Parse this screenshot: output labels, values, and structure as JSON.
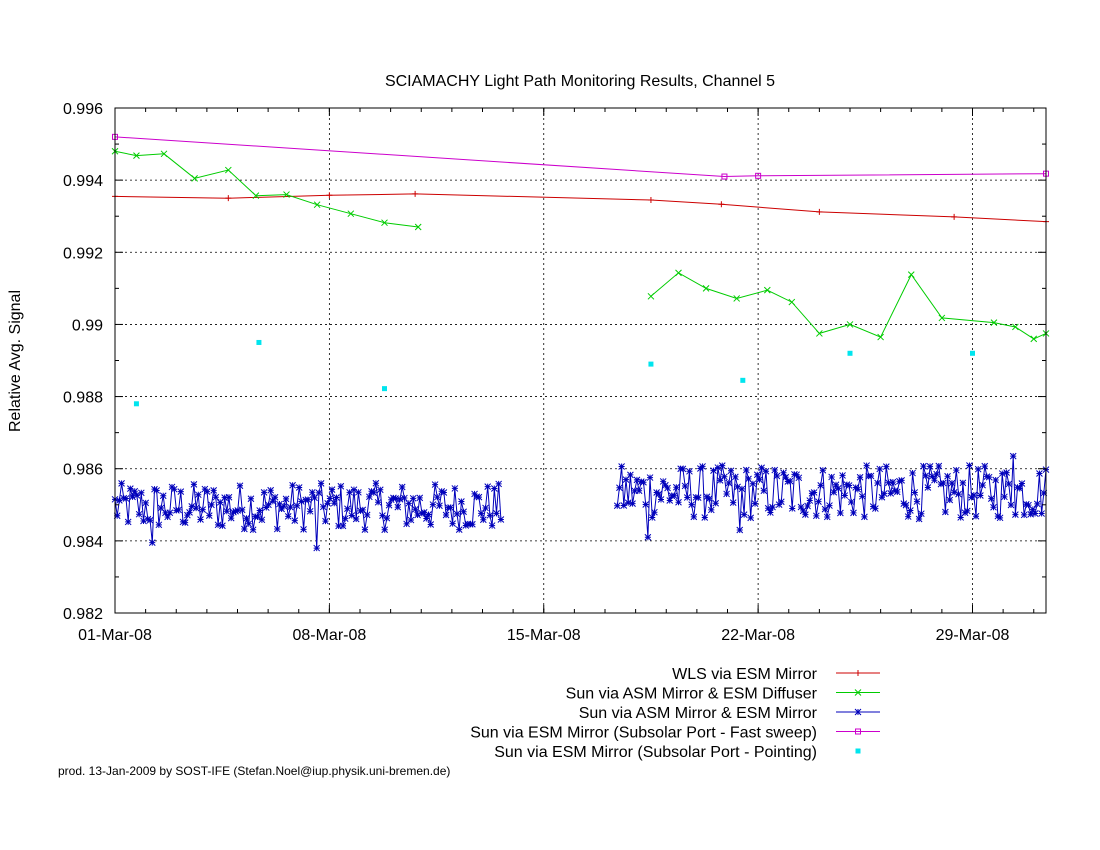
{
  "chart_data": {
    "type": "line",
    "title": "SCIAMACHY Light Path Monitoring Results, Channel 5",
    "xlabel": "",
    "ylabel": "Relative Avg. Signal",
    "x_axis_type": "date",
    "xlim": [
      "2008-03-01",
      "2008-03-31.4"
    ],
    "ylim": [
      0.982,
      0.996
    ],
    "x_ticks": [
      {
        "value": "2008-03-01",
        "label": "01-Mar-08"
      },
      {
        "value": "2008-03-08",
        "label": "08-Mar-08"
      },
      {
        "value": "2008-03-15",
        "label": "15-Mar-08"
      },
      {
        "value": "2008-03-22",
        "label": "22-Mar-08"
      },
      {
        "value": "2008-03-29",
        "label": "29-Mar-08"
      }
    ],
    "y_ticks": [
      {
        "value": 0.982,
        "label": "0.982"
      },
      {
        "value": 0.984,
        "label": "0.984"
      },
      {
        "value": 0.986,
        "label": "0.986"
      },
      {
        "value": 0.988,
        "label": "0.988"
      },
      {
        "value": 0.99,
        "label": "0.99"
      },
      {
        "value": 0.992,
        "label": "0.992"
      },
      {
        "value": 0.994,
        "label": "0.994"
      },
      {
        "value": 0.996,
        "label": "0.996"
      }
    ],
    "grid": true,
    "legend_position": "bottom-right",
    "series": [
      {
        "name": "WLS via ESM Mirror",
        "color": "#cc0000",
        "marker": "plus",
        "style": "line",
        "points": [
          [
            "2008-03-01",
            0.99355
          ],
          [
            "2008-03-04.7",
            0.9935
          ],
          [
            "2008-03-08",
            0.99358
          ],
          [
            "2008-03-10.8",
            0.99362
          ],
          [
            "2008-03-18.5",
            0.99345
          ],
          [
            "2008-03-20.8",
            0.99333
          ],
          [
            "2008-03-24",
            0.99312
          ],
          [
            "2008-03-28.4",
            0.99298
          ],
          [
            "2008-03-31.4",
            0.99285
          ]
        ]
      },
      {
        "name": "Sun via ASM Mirror & ESM Diffuser",
        "color": "#00cc00",
        "marker": "cross",
        "style": "line",
        "points": [
          [
            "2008-03-01",
            0.9948
          ],
          [
            "2008-03-01.7",
            0.99468
          ],
          [
            "2008-03-02.6",
            0.99473
          ],
          [
            "2008-03-03.6",
            0.99405
          ],
          [
            "2008-03-04.7",
            0.99428
          ],
          [
            "2008-03-05.6",
            0.99357
          ],
          [
            "2008-03-06.6",
            0.9936
          ],
          [
            "2008-03-07.6",
            0.99332
          ],
          [
            "2008-03-08.7",
            0.99307
          ],
          [
            "2008-03-09.8",
            0.99282
          ],
          [
            "2008-03-10.9",
            0.9927
          ],
          null,
          [
            "2008-03-18.5",
            0.99078
          ],
          [
            "2008-03-19.4",
            0.99143
          ],
          [
            "2008-03-20.3",
            0.991
          ],
          [
            "2008-03-21.3",
            0.99072
          ],
          [
            "2008-03-22.3",
            0.99095
          ],
          [
            "2008-03-23.1",
            0.99062
          ],
          [
            "2008-03-24",
            0.98975
          ],
          [
            "2008-03-25",
            0.99
          ],
          [
            "2008-03-26",
            0.98965
          ],
          [
            "2008-03-27",
            0.99138
          ],
          [
            "2008-03-28",
            0.99018
          ],
          [
            "2008-03-29.7",
            0.99005
          ],
          [
            "2008-03-30.4",
            0.98993
          ],
          [
            "2008-03-31",
            0.9896
          ],
          [
            "2008-03-31.4",
            0.98975
          ]
        ]
      },
      {
        "name": "Sun via ASM Mirror & ESM Mirror",
        "color": "#0000bb",
        "marker": "star",
        "style": "line-dense",
        "segments": [
          {
            "start": "2008-03-01",
            "end": "2008-03-13.6",
            "low": 0.9843,
            "high": 0.9856,
            "spikes": [
              [
                "2008-03-07.6",
                0.9838
              ],
              [
                "2008-03-02.2",
                0.98395
              ]
            ]
          },
          {
            "start": "2008-03-17.4",
            "end": "2008-03-31.4",
            "low": 0.9846,
            "high": 0.9861,
            "spikes": [
              [
                "2008-03-18.4",
                0.9841
              ],
              [
                "2008-03-21.4",
                0.9843
              ],
              [
                "2008-03-30.3",
                0.98635
              ]
            ]
          }
        ]
      },
      {
        "name": "Sun via ESM Mirror (Subsolar Port - Fast sweep)",
        "color": "#cc00cc",
        "marker": "square-open",
        "style": "line",
        "points": [
          [
            "2008-03-01",
            0.9952
          ],
          [
            "2008-03-20.9",
            0.9941
          ],
          [
            "2008-03-22",
            0.99412
          ],
          [
            "2008-03-31.4",
            0.99418
          ]
        ]
      },
      {
        "name": "Sun via ESM Mirror (Subsolar Port - Pointing)",
        "color": "#00e5ee",
        "marker": "square-filled",
        "style": "points",
        "points": [
          [
            "2008-03-01.7",
            0.9878
          ],
          [
            "2008-03-05.7",
            0.9895
          ],
          [
            "2008-03-09.8",
            0.98822
          ],
          [
            "2008-03-18.5",
            0.9889
          ],
          [
            "2008-03-21.5",
            0.98845
          ],
          [
            "2008-03-25",
            0.9892
          ],
          [
            "2008-03-29",
            0.9892
          ]
        ]
      }
    ]
  },
  "footer": {
    "text": "prod. 13-Jan-2009 by SOST-IFE (Stefan.Noel@iup.physik.uni-bremen.de)"
  }
}
